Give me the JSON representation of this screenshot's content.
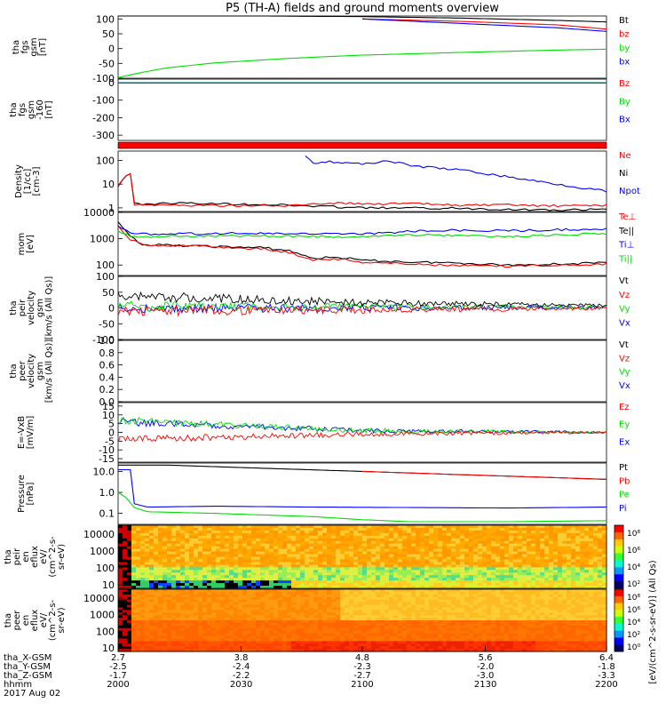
{
  "title": "P5 (TH-A) fields and ground moments overview",
  "colors": {
    "black": "#000000",
    "red": "#ff0000",
    "green": "#00dd00",
    "blue": "#0000ff",
    "lime": "#33ee33"
  },
  "x_axis": {
    "rows": [
      {
        "label": "tha_X-GSM",
        "values": [
          "2.7",
          "3.8",
          "4.8",
          "5.6",
          "6.4"
        ]
      },
      {
        "label": "tha_Y-GSM",
        "values": [
          "-2.5",
          "-2.4",
          "-2.3",
          "-2.0",
          "-1.8"
        ]
      },
      {
        "label": "tha_Z-GSM",
        "values": [
          "-1.7",
          "-2.2",
          "-2.7",
          "-3.0",
          "-3.3"
        ]
      },
      {
        "label": "hhmm",
        "values": [
          "2000",
          "2030",
          "2100",
          "2130",
          "2200"
        ]
      }
    ],
    "date": "2017 Aug 02"
  },
  "colorbar_label": "[eV/(cm^2-s-sr-eV)] (All Qs)",
  "chart_data": [
    {
      "type": "line",
      "ylabel": [
        "tha",
        "fgs",
        "gsm",
        "[nT]"
      ],
      "yticks": [
        "100",
        "50",
        "0",
        "-50",
        "-100"
      ],
      "ylim": [
        -100,
        110
      ],
      "legend": [
        {
          "name": "Bt",
          "color": "#000000"
        },
        {
          "name": "bz",
          "color": "#ff0000"
        },
        {
          "name": "by",
          "color": "#00dd00"
        },
        {
          "name": "bx",
          "color": "#0000ff"
        }
      ],
      "series": [
        {
          "name": "Bt",
          "color": "#000000",
          "x": [
            0.0,
            0.1,
            0.3,
            0.5,
            0.7,
            0.9,
            1.0
          ],
          "y": [
            110,
            110,
            110,
            108,
            103,
            95,
            90
          ]
        },
        {
          "name": "bz",
          "color": "#ff0000",
          "x": [
            0.5,
            0.7,
            0.9,
            1.0
          ],
          "y": [
            100,
            92,
            80,
            66
          ]
        },
        {
          "name": "by",
          "color": "#00dd00",
          "x": [
            0.0,
            0.05,
            0.1,
            0.2,
            0.35,
            0.5,
            0.7,
            0.9,
            1.0
          ],
          "y": [
            -98,
            -80,
            -65,
            -48,
            -33,
            -22,
            -13,
            -5,
            -2
          ]
        },
        {
          "name": "bx",
          "color": "#0000ff",
          "x": [
            0.5,
            0.7,
            0.9,
            1.0
          ],
          "y": [
            100,
            85,
            70,
            58
          ]
        }
      ]
    },
    {
      "type": "line",
      "ylabel": [
        "tha",
        "fgs",
        "gsm",
        "-160",
        "[nT]"
      ],
      "yticks": [
        "0",
        "-100",
        "-200",
        "-300"
      ],
      "ylim": [
        -330,
        20
      ],
      "legend": [
        {
          "name": "Bz",
          "color": "#ff0000"
        },
        {
          "name": "By",
          "color": "#00dd00"
        },
        {
          "name": "Bx",
          "color": "#0000ff"
        }
      ],
      "series": [
        {
          "name": "Bx",
          "color": "#0000ff",
          "x": [
            0.0,
            1.0
          ],
          "y": [
            -1,
            -1
          ]
        },
        {
          "name": "By",
          "color": "#00dd00",
          "x": [
            0.0,
            1.0
          ],
          "y": [
            -2,
            -2
          ]
        },
        {
          "name": "Bz",
          "color": "#ff0000",
          "x": [
            0.0,
            1.0
          ],
          "y": [
            -3,
            -3
          ]
        }
      ]
    },
    {
      "type": "line",
      "ylabel": [
        "Density",
        "[1/cc]",
        "[cm-3]"
      ],
      "yticks": [
        "100",
        "10",
        "1"
      ],
      "log": true,
      "ylim": [
        0.7,
        250
      ],
      "legend": [
        {
          "name": "Ne",
          "color": "#ff0000"
        },
        {
          "name": "Ni",
          "color": "#000000"
        },
        {
          "name": "Npot",
          "color": "#0000ff"
        }
      ],
      "series": [
        {
          "name": "Ni",
          "color": "#000000",
          "x": [
            0.0,
            0.02,
            0.025,
            0.03,
            0.05,
            0.1,
            0.3,
            0.5,
            0.7,
            0.9,
            1.0
          ],
          "y": [
            8,
            30,
            30,
            1.5,
            1.4,
            1.6,
            1.4,
            1.0,
            0.95,
            0.8,
            0.85
          ]
        },
        {
          "name": "Ne",
          "color": "#ff0000",
          "x": [
            0.0,
            0.02,
            0.025,
            0.03,
            0.1,
            0.35,
            0.4,
            0.45,
            0.5,
            0.6,
            0.7,
            0.8,
            0.9,
            1.0
          ],
          "y": [
            9,
            30,
            30,
            1.4,
            1.3,
            1.2,
            1.5,
            1.6,
            1.5,
            1.5,
            1.3,
            1.3,
            1.2,
            1.3
          ]
        },
        {
          "name": "Npot",
          "color": "#0000ff",
          "x": [
            0.38,
            0.4,
            0.43,
            0.5,
            0.55,
            0.6,
            0.7,
            0.8,
            0.9,
            1.0
          ],
          "y": [
            200,
            80,
            90,
            70,
            100,
            60,
            40,
            20,
            10,
            5
          ]
        }
      ]
    },
    {
      "type": "line",
      "ylabel": [
        "mom",
        "[eV]"
      ],
      "yticks": [
        "10000",
        "1000",
        "100"
      ],
      "log": true,
      "ylim": [
        40,
        10000
      ],
      "legend": [
        {
          "name": "Te⊥",
          "color": "#ff0000"
        },
        {
          "name": "Te||",
          "color": "#000000"
        },
        {
          "name": "Ti⊥",
          "color": "#0000ff"
        },
        {
          "name": "Ti||",
          "color": "#00dd00"
        }
      ],
      "series": [
        {
          "name": "Te||",
          "color": "#000000",
          "x": [
            0.0,
            0.02,
            0.05,
            0.2,
            0.3,
            0.35,
            0.4,
            0.45,
            0.5,
            0.6,
            0.7,
            0.8,
            0.9,
            1.0
          ],
          "y": [
            4000,
            1500,
            600,
            500,
            450,
            350,
            180,
            200,
            150,
            130,
            120,
            100,
            110,
            120
          ]
        },
        {
          "name": "Te⊥",
          "color": "#ff0000",
          "x": [
            0.0,
            0.02,
            0.05,
            0.2,
            0.3,
            0.35,
            0.4,
            0.45,
            0.5,
            0.6,
            0.7,
            0.8,
            0.9,
            1.0
          ],
          "y": [
            3000,
            1000,
            600,
            500,
            400,
            300,
            160,
            170,
            130,
            110,
            95,
            90,
            100,
            110
          ]
        },
        {
          "name": "Ti⊥",
          "color": "#0000ff",
          "x": [
            0.0,
            0.02,
            0.05,
            0.2,
            0.3,
            0.4,
            0.5,
            0.6,
            0.7,
            0.8,
            0.9,
            1.0
          ],
          "y": [
            3000,
            1800,
            1500,
            1600,
            1600,
            1500,
            1500,
            1900,
            2100,
            2000,
            2200,
            2300
          ]
        },
        {
          "name": "Ti||",
          "color": "#00dd00",
          "x": [
            0.0,
            0.02,
            0.05,
            0.2,
            0.3,
            0.4,
            0.5,
            0.6,
            0.7,
            0.8,
            0.9,
            1.0
          ],
          "y": [
            2000,
            1300,
            1200,
            1300,
            1300,
            1200,
            1200,
            1400,
            1300,
            1200,
            1400,
            1600
          ]
        }
      ]
    },
    {
      "type": "line",
      "ylabel": [
        "tha",
        "peir",
        "velocity",
        "gsm",
        "[km/s (All Qs)]"
      ],
      "yticks": [
        "100",
        "50",
        "0",
        "-50",
        "-100"
      ],
      "ylim": [
        -100,
        100
      ],
      "legend": [
        {
          "name": "Vt",
          "color": "#000000"
        },
        {
          "name": "Vz",
          "color": "#ff0000"
        },
        {
          "name": "Vy",
          "color": "#00dd00"
        },
        {
          "name": "Vx",
          "color": "#0000ff"
        }
      ],
      "series": [
        {
          "name": "Vx",
          "color": "#0000ff",
          "x": [
            0.0,
            0.5,
            1.0
          ],
          "y": [
            -3,
            0,
            2
          ]
        },
        {
          "name": "Vy",
          "color": "#00dd00",
          "x": [
            0.0,
            0.5,
            1.0
          ],
          "y": [
            5,
            3,
            2
          ]
        },
        {
          "name": "Vz",
          "color": "#ff0000",
          "x": [
            0.0,
            0.5,
            1.0
          ],
          "y": [
            -10,
            -6,
            -1
          ]
        },
        {
          "name": "Vt",
          "color": "#000000",
          "x": [
            0.0,
            0.5,
            1.0
          ],
          "y": [
            38,
            17,
            7
          ]
        }
      ]
    },
    {
      "type": "line",
      "ylabel": [
        "tha",
        "peer",
        "velocity",
        "gsm",
        "[km/s (All Qs)]"
      ],
      "yticks": [
        "1.0",
        "0.8",
        "0.6",
        "0.4",
        "0.2",
        "0.0"
      ],
      "ylim": [
        0,
        1
      ],
      "legend": [
        {
          "name": "Vt",
          "color": "#000000"
        },
        {
          "name": "Vz",
          "color": "#ff0000"
        },
        {
          "name": "Vy",
          "color": "#00dd00"
        },
        {
          "name": "Vx",
          "color": "#0000ff"
        }
      ],
      "series": []
    },
    {
      "type": "line",
      "ylabel": [
        "E=-VxB",
        "[mV/m]"
      ],
      "yticks": [
        "15",
        "10",
        "5",
        "0",
        "-5",
        "-10",
        "-15"
      ],
      "ylim": [
        -17,
        17
      ],
      "legend": [
        {
          "name": "Ez",
          "color": "#ff0000"
        },
        {
          "name": "Ey",
          "color": "#00dd00"
        },
        {
          "name": "Ex",
          "color": "#0000ff"
        }
      ],
      "series": [
        {
          "name": "Ex",
          "color": "#0000ff",
          "x": [
            0.0,
            0.5,
            1.0
          ],
          "y": [
            6,
            1,
            0
          ]
        },
        {
          "name": "Ey",
          "color": "#00dd00",
          "x": [
            0.0,
            0.5,
            1.0
          ],
          "y": [
            7,
            1,
            0
          ]
        },
        {
          "name": "Ez",
          "color": "#ff0000",
          "x": [
            0.0,
            0.5,
            1.0
          ],
          "y": [
            -4,
            -1,
            0
          ]
        }
      ]
    },
    {
      "type": "line",
      "ylabel": [
        "Pressure",
        "[nPa]"
      ],
      "yticks": [
        "10.0",
        "1.0",
        "0.1"
      ],
      "log": true,
      "ylim": [
        0.03,
        25
      ],
      "legend": [
        {
          "name": "Pt",
          "color": "#000000"
        },
        {
          "name": "Pb",
          "color": "#ff0000"
        },
        {
          "name": "Pe",
          "color": "#00dd00"
        },
        {
          "name": "Pi",
          "color": "#0000ff"
        }
      ],
      "series": [
        {
          "name": "Pt",
          "color": "#000000",
          "x": [
            0.0,
            0.1,
            0.3,
            0.5,
            0.7,
            0.9,
            1.0
          ],
          "y": [
            20,
            20,
            14,
            10,
            7,
            5,
            4.2
          ]
        },
        {
          "name": "Pb",
          "color": "#ff0000",
          "x": [
            0.5,
            0.7,
            0.9,
            1.0
          ],
          "y": [
            10,
            7,
            5,
            4.1
          ]
        },
        {
          "name": "Pi",
          "color": "#0000ff",
          "x": [
            0.0,
            0.02,
            0.025,
            0.03,
            0.06,
            0.2,
            0.4,
            0.6,
            0.8,
            1.0
          ],
          "y": [
            12,
            12,
            12,
            0.3,
            0.2,
            0.22,
            0.2,
            0.19,
            0.18,
            0.2
          ]
        },
        {
          "name": "Pe",
          "color": "#00dd00",
          "x": [
            0.0,
            0.02,
            0.03,
            0.06,
            0.2,
            0.4,
            0.5,
            0.6,
            0.8,
            1.0
          ],
          "y": [
            1,
            0.5,
            0.2,
            0.12,
            0.1,
            0.07,
            0.05,
            0.04,
            0.04,
            0.045
          ]
        }
      ]
    },
    {
      "type": "heatmap",
      "ylabel": [
        "tha",
        "peir",
        "en",
        "eflux",
        "eV/",
        "(cm^2-s-",
        "sr-eV)"
      ],
      "yticks": [
        "10000",
        "1000",
        "100",
        "10"
      ],
      "colorbar_ticks": [
        "10^8",
        "10^6",
        "10^4",
        "10^2"
      ]
    },
    {
      "type": "heatmap",
      "ylabel": [
        "tha",
        "peer",
        "en",
        "eflux",
        "eV/",
        "(cm^2-s-",
        "sr-eV)"
      ],
      "yticks": [
        "10000",
        "1000",
        "100",
        "10"
      ],
      "colorbar_ticks": [
        "10^8",
        "10^6",
        "10^4",
        "10^2",
        "10^0"
      ]
    }
  ]
}
